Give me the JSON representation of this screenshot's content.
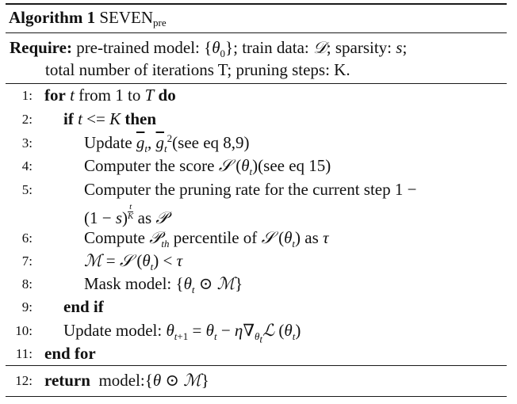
{
  "algorithm": {
    "label": "Algorithm 1",
    "name": "SEVEN",
    "name_subscript": "pre"
  },
  "require": {
    "keyword": "Require:",
    "line1_text": " pre-trained model: {θ₀}; train data: 𝒟; sparsity: s;",
    "line2_text": "total number of iterations T; pruning steps: K."
  },
  "steps": [
    {
      "num": "1:",
      "text": "for t from 1 to T do"
    },
    {
      "num": "2:",
      "text": "if t <= K then"
    },
    {
      "num": "3:",
      "text": "Update ḡt, ḡt²(see eq 8,9)"
    },
    {
      "num": "4:",
      "text": "Computer the score 𝒮 (θt)(see eq 15)"
    },
    {
      "num": "5:",
      "text": "Computer the pruning rate for the current step 1 −"
    },
    {
      "num": "",
      "text": "(1 − s)^(t/K) as 𝒫"
    },
    {
      "num": "6:",
      "text": "Compute 𝒫th percentile of 𝒮 (θt) as τ"
    },
    {
      "num": "7:",
      "text": "ℳ = 𝒮 (θt) < τ"
    },
    {
      "num": "8:",
      "text": "Mask model: {θt ⊙ ℳ}"
    },
    {
      "num": "9:",
      "text": "end if"
    },
    {
      "num": "10:",
      "text": "Update model: θt+1 = θt − η∇θt ℒ (θt)"
    },
    {
      "num": "11:",
      "text": "end for"
    },
    {
      "num": "12:",
      "text": "return model:{θ ⊙ ℳ}"
    }
  ]
}
